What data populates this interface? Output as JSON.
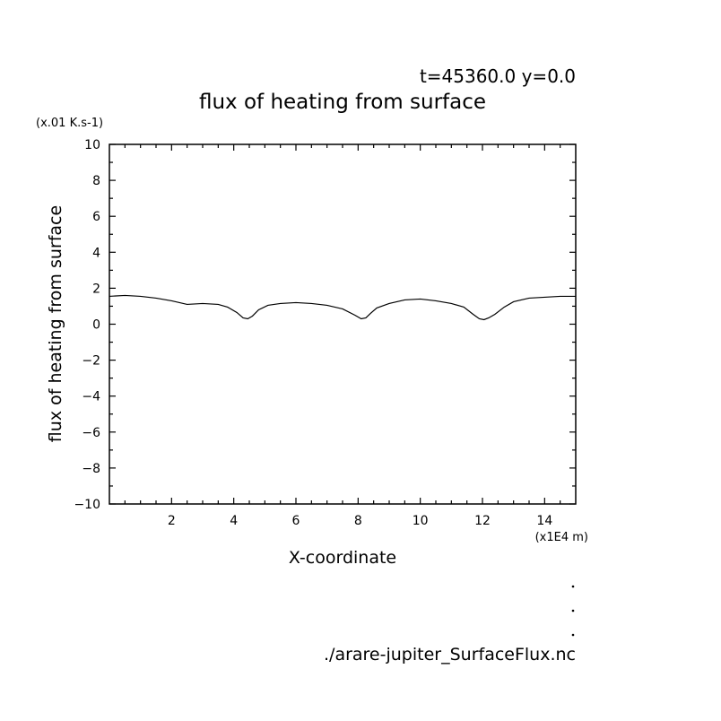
{
  "header": {
    "time_label": "t=45360.0 y=0.0"
  },
  "footer": {
    "file_label": "./arare-jupiter_SurfaceFlux.nc"
  },
  "chart_data": {
    "type": "line",
    "title": "flux of heating from surface",
    "xlabel": "X-coordinate",
    "ylabel": "flux of heating from surface",
    "x_unit_label": "(x1E4 m)",
    "y_unit_label": "(x.01 K.s-1)",
    "xlim": [
      0,
      15
    ],
    "ylim": [
      -10,
      10
    ],
    "x_ticks": [
      2,
      4,
      6,
      8,
      10,
      12,
      14
    ],
    "y_ticks": [
      -10,
      -8,
      -6,
      -4,
      -2,
      0,
      2,
      4,
      6,
      8,
      10
    ],
    "grid": false,
    "series": [
      {
        "x": [
          0.0,
          0.5,
          1.0,
          1.5,
          2.0,
          2.5,
          3.0,
          3.5,
          3.8,
          4.1,
          4.3,
          4.45,
          4.6,
          4.8,
          5.1,
          5.5,
          6.0,
          6.5,
          7.0,
          7.5,
          7.9,
          8.1,
          8.25,
          8.4,
          8.6,
          9.0,
          9.5,
          10.0,
          10.5,
          11.0,
          11.4,
          11.7,
          11.9,
          12.05,
          12.2,
          12.4,
          12.7,
          13.0,
          13.5,
          14.0,
          14.5,
          15.0
        ],
        "y": [
          1.55,
          1.6,
          1.55,
          1.45,
          1.3,
          1.1,
          1.15,
          1.1,
          0.95,
          0.65,
          0.35,
          0.3,
          0.45,
          0.8,
          1.05,
          1.15,
          1.2,
          1.15,
          1.05,
          0.85,
          0.5,
          0.3,
          0.35,
          0.6,
          0.9,
          1.15,
          1.35,
          1.4,
          1.3,
          1.15,
          0.95,
          0.55,
          0.3,
          0.25,
          0.35,
          0.55,
          0.95,
          1.25,
          1.45,
          1.5,
          1.55,
          1.55
        ]
      }
    ]
  }
}
